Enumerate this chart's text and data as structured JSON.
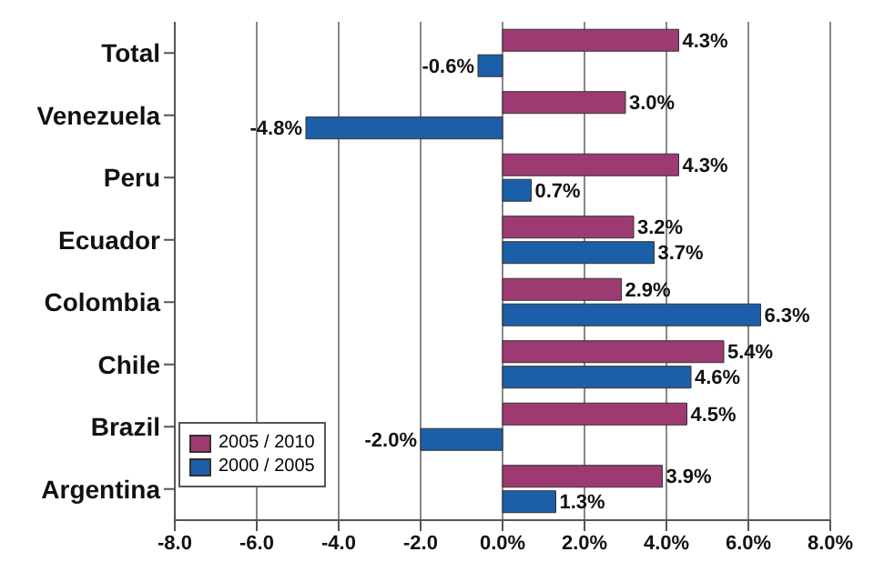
{
  "chart_data": {
    "type": "bar",
    "orientation": "horizontal",
    "categories": [
      "Total",
      "Venezuela",
      "Peru",
      "Ecuador",
      "Colombia",
      "Chile",
      "Brazil",
      "Argentina"
    ],
    "series": [
      {
        "name": "2005 / 2010",
        "color": "#9e3a72",
        "values": [
          4.3,
          3.0,
          4.3,
          3.2,
          2.9,
          5.4,
          4.5,
          3.9
        ],
        "value_labels": [
          "4.3%",
          "3.0%",
          "4.3%",
          "3.2%",
          "2.9%",
          "5.4%",
          "4.5%",
          "3.9%"
        ]
      },
      {
        "name": "2000 / 2005",
        "color": "#1d5ea8",
        "values": [
          -0.6,
          -4.8,
          0.7,
          3.7,
          6.3,
          4.6,
          -2.0,
          1.3
        ],
        "value_labels": [
          "-0.6%",
          "-4.8%",
          "0.7%",
          "3.7%",
          "6.3%",
          "4.6%",
          "-2.0%",
          "1.3%"
        ]
      }
    ],
    "xlim": [
      -8,
      8
    ],
    "xticks": [
      {
        "value": -8,
        "label": "-8.0"
      },
      {
        "value": -6,
        "label": "-6.0"
      },
      {
        "value": -4,
        "label": "-4.0"
      },
      {
        "value": -2,
        "label": "-2.0"
      },
      {
        "value": 0,
        "label": "0.0%"
      },
      {
        "value": 2,
        "label": "2.0%"
      },
      {
        "value": 4,
        "label": "4.0%"
      },
      {
        "value": 6,
        "label": "6.0%"
      },
      {
        "value": 8,
        "label": "8.0%"
      }
    ],
    "grid": "x",
    "legend": "bottom left"
  }
}
